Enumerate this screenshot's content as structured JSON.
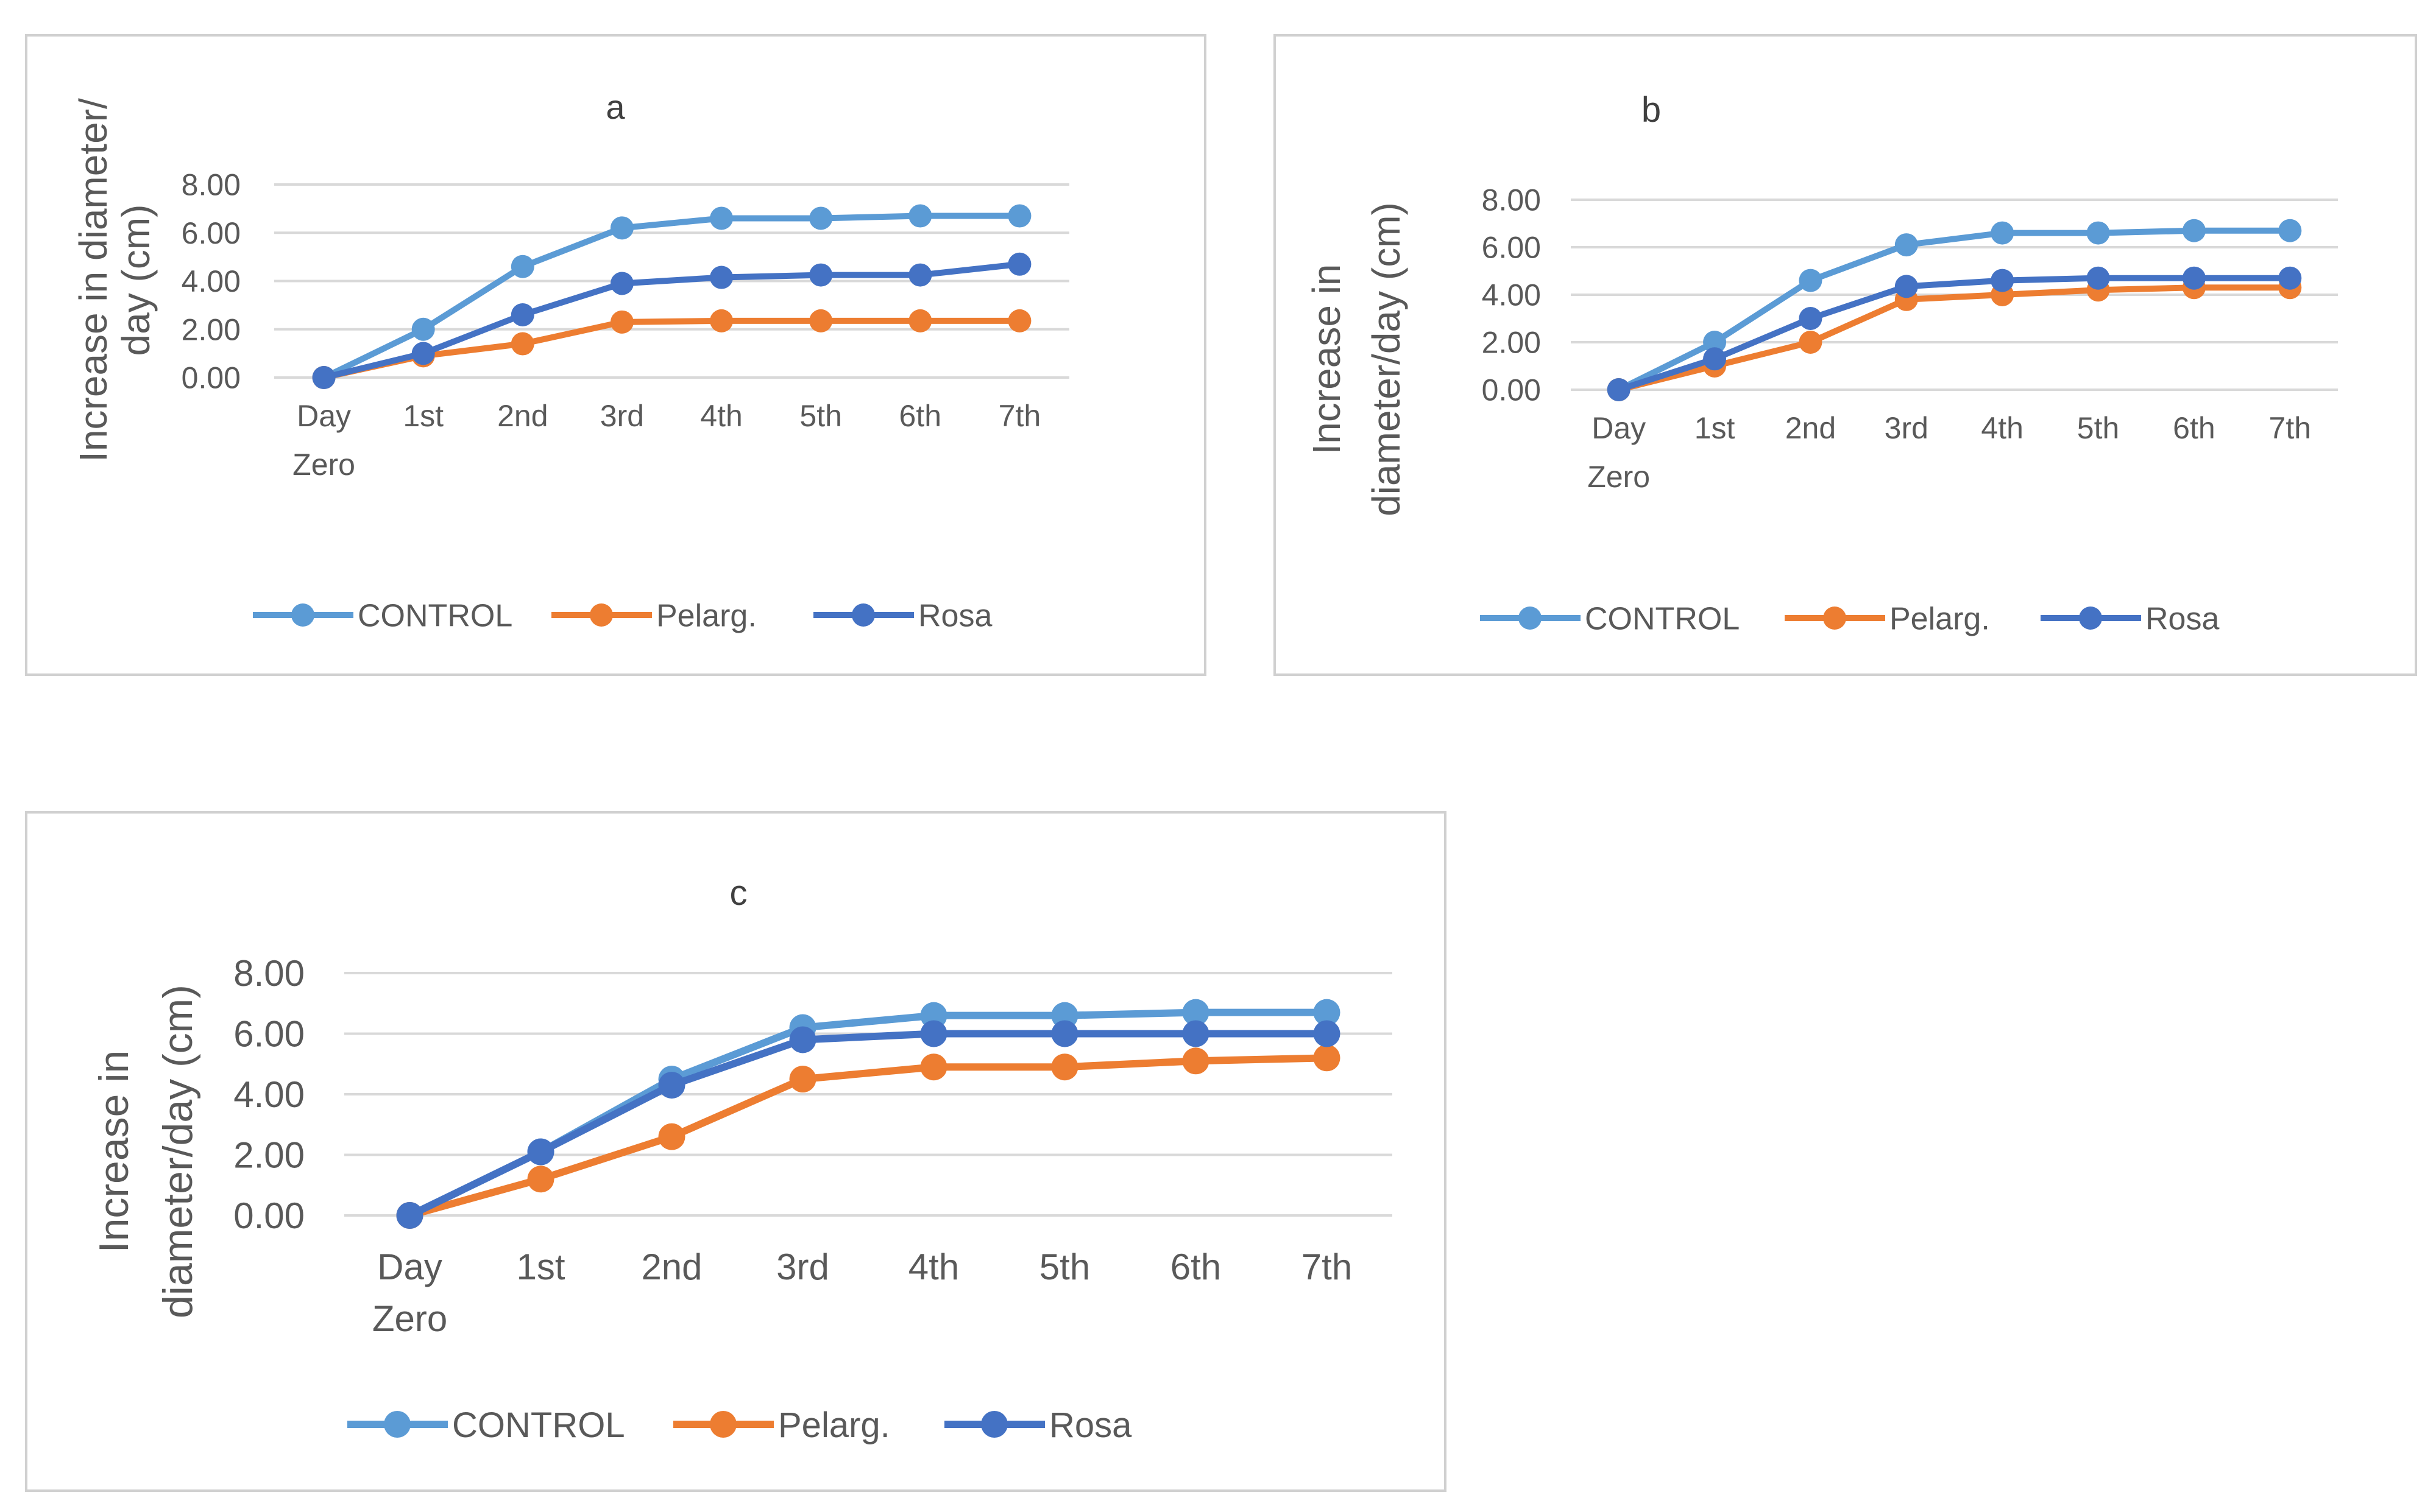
{
  "chart_data": [
    {
      "type": "line",
      "title": "a",
      "ylabel_lines": [
        "Increase in diameter/",
        "day (cm)"
      ],
      "categories": [
        [
          "Day",
          "Zero"
        ],
        [
          "1st"
        ],
        [
          "2nd"
        ],
        [
          "3rd"
        ],
        [
          "4th"
        ],
        [
          "5th"
        ],
        [
          "6th"
        ],
        [
          "7th"
        ]
      ],
      "yticks": [
        "0.00",
        "2.00",
        "4.00",
        "6.00",
        "8.00"
      ],
      "ylim": [
        0,
        8
      ],
      "grid": true,
      "legend": "bottom",
      "series": [
        {
          "name": "CONTROL",
          "color": "#5B9BD5",
          "values": [
            0,
            2.0,
            4.6,
            6.2,
            6.6,
            6.6,
            6.7,
            6.7
          ]
        },
        {
          "name": "Pelarg.",
          "color": "#ED7D31",
          "values": [
            0,
            0.9,
            1.4,
            2.3,
            2.35,
            2.35,
            2.35,
            2.35
          ]
        },
        {
          "name": "Rosa",
          "color": "#4472C4",
          "values": [
            0,
            1.0,
            2.6,
            3.9,
            4.15,
            4.25,
            4.25,
            4.7
          ]
        }
      ]
    },
    {
      "type": "line",
      "title": "b",
      "ylabel_lines": [
        "Increase in",
        "diameter/day (cm)"
      ],
      "categories": [
        [
          "Day",
          "Zero"
        ],
        [
          "1st"
        ],
        [
          "2nd"
        ],
        [
          "3rd"
        ],
        [
          "4th"
        ],
        [
          "5th"
        ],
        [
          "6th"
        ],
        [
          "7th"
        ]
      ],
      "yticks": [
        "0.00",
        "2.00",
        "4.00",
        "6.00",
        "8.00"
      ],
      "ylim": [
        0,
        8
      ],
      "grid": true,
      "legend": "bottom",
      "series": [
        {
          "name": "CONTROL",
          "color": "#5B9BD5",
          "values": [
            0,
            2.0,
            4.6,
            6.1,
            6.6,
            6.6,
            6.7,
            6.7
          ]
        },
        {
          "name": "Pelarg.",
          "color": "#ED7D31",
          "values": [
            0,
            1.0,
            2.0,
            3.8,
            4.0,
            4.2,
            4.3,
            4.3
          ]
        },
        {
          "name": "Rosa",
          "color": "#4472C4",
          "values": [
            0,
            1.3,
            3.0,
            4.35,
            4.6,
            4.7,
            4.7,
            4.7
          ]
        }
      ]
    },
    {
      "type": "line",
      "title": "c",
      "ylabel_lines": [
        "Increase in",
        "diameter/day (cm)"
      ],
      "categories": [
        [
          "Day",
          "Zero"
        ],
        [
          "1st"
        ],
        [
          "2nd"
        ],
        [
          "3rd"
        ],
        [
          "4th"
        ],
        [
          "5th"
        ],
        [
          "6th"
        ],
        [
          "7th"
        ]
      ],
      "yticks": [
        "0.00",
        "2.00",
        "4.00",
        "6.00",
        "8.00"
      ],
      "ylim": [
        0,
        8
      ],
      "grid": true,
      "legend": "bottom",
      "series": [
        {
          "name": "CONTROL",
          "color": "#5B9BD5",
          "values": [
            0,
            2.1,
            4.5,
            6.2,
            6.6,
            6.6,
            6.7,
            6.7
          ]
        },
        {
          "name": "Pelarg.",
          "color": "#ED7D31",
          "values": [
            0,
            1.2,
            2.6,
            4.5,
            4.9,
            4.9,
            5.1,
            5.2
          ]
        },
        {
          "name": "Rosa",
          "color": "#4472C4",
          "values": [
            0,
            2.1,
            4.3,
            5.8,
            6.0,
            6.0,
            6.0,
            6.0
          ]
        }
      ]
    }
  ]
}
